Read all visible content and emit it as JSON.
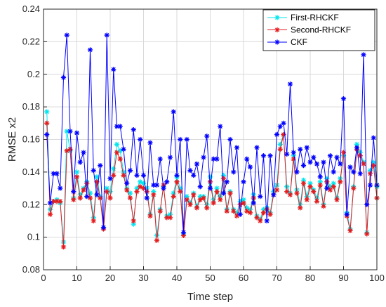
{
  "chart_data": {
    "type": "line",
    "xlabel": "Time step",
    "ylabel": "RMSE x2",
    "xlim": [
      0,
      100
    ],
    "ylim": [
      0.08,
      0.24
    ],
    "xticks": [
      0,
      10,
      20,
      30,
      40,
      50,
      60,
      70,
      80,
      90,
      100
    ],
    "yticks": [
      0.08,
      0.1,
      0.12,
      0.14,
      0.16,
      0.18,
      0.2,
      0.22,
      0.24
    ],
    "grid": true,
    "legend_position": "top-right",
    "x": [
      1,
      2,
      3,
      4,
      5,
      6,
      7,
      8,
      9,
      10,
      11,
      12,
      13,
      14,
      15,
      16,
      17,
      18,
      19,
      20,
      21,
      22,
      23,
      24,
      25,
      26,
      27,
      28,
      29,
      30,
      31,
      32,
      33,
      34,
      35,
      36,
      37,
      38,
      39,
      40,
      41,
      42,
      43,
      44,
      45,
      46,
      47,
      48,
      49,
      50,
      51,
      52,
      53,
      54,
      55,
      56,
      57,
      58,
      59,
      60,
      61,
      62,
      63,
      64,
      65,
      66,
      67,
      68,
      69,
      70,
      71,
      72,
      73,
      74,
      75,
      76,
      77,
      78,
      79,
      80,
      81,
      82,
      83,
      84,
      85,
      86,
      87,
      88,
      89,
      90,
      91,
      92,
      93,
      94,
      95,
      96,
      97,
      98,
      99,
      100
    ],
    "series": [
      {
        "name": "First-RHCKF",
        "color": "#00e5ee",
        "values": [
          0.177,
          0.117,
          0.122,
          0.123,
          0.121,
          0.097,
          0.165,
          0.153,
          0.124,
          0.14,
          0.126,
          0.13,
          0.134,
          0.127,
          0.112,
          0.137,
          0.125,
          0.106,
          0.13,
          0.128,
          0.142,
          0.157,
          0.153,
          0.14,
          0.13,
          0.127,
          0.108,
          0.13,
          0.134,
          0.133,
          0.13,
          0.114,
          0.128,
          0.101,
          0.117,
          0.131,
          0.113,
          0.114,
          0.127,
          0.137,
          0.13,
          0.102,
          0.125,
          0.121,
          0.127,
          0.119,
          0.125,
          0.125,
          0.12,
          0.137,
          0.123,
          0.13,
          0.125,
          0.138,
          0.117,
          0.128,
          0.117,
          0.115,
          0.122,
          0.123,
          0.118,
          0.117,
          0.126,
          0.113,
          0.111,
          0.117,
          0.118,
          0.115,
          0.128,
          0.132,
          0.157,
          0.163,
          0.131,
          0.127,
          0.15,
          0.129,
          0.12,
          0.135,
          0.125,
          0.133,
          0.129,
          0.124,
          0.134,
          0.12,
          0.136,
          0.131,
          0.133,
          0.124,
          0.136,
          0.15,
          0.115,
          0.105,
          0.131,
          0.157,
          0.152,
          0.146,
          0.103,
          0.141,
          0.146,
          0.131
        ]
      },
      {
        "name": "Second-RHCKF",
        "color": "#e41a1c",
        "values": [
          0.17,
          0.114,
          0.122,
          0.122,
          0.122,
          0.094,
          0.153,
          0.154,
          0.123,
          0.137,
          0.124,
          0.129,
          0.133,
          0.124,
          0.11,
          0.134,
          0.124,
          0.105,
          0.128,
          0.124,
          0.138,
          0.152,
          0.148,
          0.138,
          0.129,
          0.124,
          0.11,
          0.128,
          0.131,
          0.13,
          0.128,
          0.113,
          0.126,
          0.098,
          0.116,
          0.132,
          0.112,
          0.112,
          0.125,
          0.134,
          0.128,
          0.101,
          0.123,
          0.12,
          0.126,
          0.118,
          0.123,
          0.124,
          0.118,
          0.134,
          0.121,
          0.128,
          0.123,
          0.136,
          0.116,
          0.127,
          0.116,
          0.113,
          0.12,
          0.121,
          0.116,
          0.115,
          0.124,
          0.112,
          0.11,
          0.115,
          0.117,
          0.114,
          0.126,
          0.129,
          0.154,
          0.163,
          0.128,
          0.126,
          0.148,
          0.127,
          0.118,
          0.133,
          0.123,
          0.131,
          0.128,
          0.122,
          0.132,
          0.119,
          0.134,
          0.129,
          0.131,
          0.123,
          0.134,
          0.152,
          0.113,
          0.104,
          0.13,
          0.154,
          0.15,
          0.145,
          0.102,
          0.139,
          0.144,
          0.124
        ]
      },
      {
        "name": "CKF",
        "color": "#0000ff",
        "values": [
          0.163,
          0.121,
          0.139,
          0.139,
          0.13,
          0.198,
          0.224,
          0.165,
          0.128,
          0.164,
          0.146,
          0.152,
          0.125,
          0.215,
          0.141,
          0.126,
          0.144,
          0.106,
          0.224,
          0.136,
          0.203,
          0.168,
          0.168,
          0.154,
          0.133,
          0.141,
          0.166,
          0.138,
          0.16,
          0.138,
          0.124,
          0.158,
          0.132,
          0.132,
          0.148,
          0.13,
          0.134,
          0.149,
          0.177,
          0.138,
          0.16,
          0.103,
          0.16,
          0.141,
          0.138,
          0.145,
          0.131,
          0.149,
          0.162,
          0.13,
          0.148,
          0.148,
          0.168,
          0.127,
          0.134,
          0.16,
          0.14,
          0.155,
          0.114,
          0.134,
          0.148,
          0.143,
          0.121,
          0.155,
          0.125,
          0.15,
          0.11,
          0.15,
          0.126,
          0.163,
          0.168,
          0.17,
          0.151,
          0.194,
          0.152,
          0.14,
          0.154,
          0.144,
          0.155,
          0.146,
          0.149,
          0.145,
          0.137,
          0.146,
          0.13,
          0.15,
          0.14,
          0.149,
          0.145,
          0.185,
          0.114,
          0.143,
          0.14,
          0.155,
          0.139,
          0.212,
          0.12,
          0.132,
          0.161,
          0.132
        ]
      }
    ]
  }
}
